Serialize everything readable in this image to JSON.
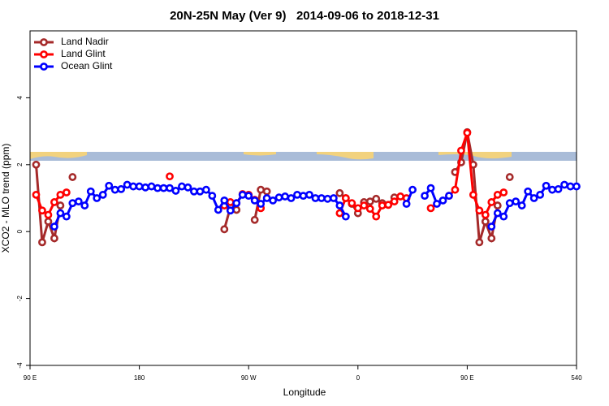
{
  "chart_data": {
    "type": "line",
    "title": "20N-25N May (Ver 9)   2014-09-06 to 2018-12-31",
    "x_label": "Longitude",
    "y_label": "XCO2 - MLO trend (ppm)",
    "xlim": [
      90,
      540
    ],
    "ylim": [
      -4,
      6
    ],
    "xticks": [
      {
        "value": 90,
        "label": "90 E"
      },
      180,
      {
        "value": 270,
        "label": "90 W"
      },
      {
        "value": 360,
        "label": "0"
      },
      {
        "value": 450,
        "label": "90 E"
      },
      540
    ],
    "yticks": [
      -4,
      -2,
      0,
      2,
      4
    ],
    "grid": false,
    "legend": "top-left",
    "x": [
      90,
      95,
      100,
      105,
      110,
      115,
      120,
      125,
      130,
      135,
      140,
      145,
      150,
      155,
      160,
      165,
      170,
      175,
      180,
      185,
      190,
      195,
      200,
      205,
      210,
      215,
      220,
      225,
      230,
      235,
      240,
      245,
      250,
      255,
      260,
      265,
      270,
      275,
      280,
      285,
      290,
      295,
      300,
      305,
      310,
      315,
      320,
      325,
      330,
      335,
      340,
      345,
      350,
      355,
      360,
      365,
      370,
      375,
      380,
      385,
      390,
      395,
      400,
      405,
      410,
      415,
      420,
      425,
      430,
      435,
      440,
      445,
      450,
      455,
      460,
      465,
      470,
      475,
      480,
      485,
      490,
      495,
      500,
      505,
      510,
      515,
      520,
      525,
      530,
      535,
      540
    ],
    "series": [
      {
        "name": "Land Nadir",
        "color": "#a52a2a",
        "values": [
          null,
          2.0,
          -0.32,
          0.3,
          -0.2,
          0.78,
          null,
          1.63,
          null,
          null,
          null,
          null,
          null,
          null,
          null,
          null,
          null,
          null,
          null,
          null,
          null,
          null,
          null,
          null,
          null,
          null,
          null,
          null,
          null,
          null,
          null,
          null,
          0.07,
          0.73,
          0.65,
          null,
          null,
          0.35,
          1.25,
          1.2,
          null,
          null,
          null,
          null,
          null,
          null,
          null,
          null,
          null,
          null,
          null,
          1.15,
          1.0,
          0.83,
          0.55,
          0.88,
          0.9,
          0.98,
          0.85,
          0.8,
          1.02,
          null,
          null,
          null,
          null,
          null,
          null,
          null,
          null,
          null,
          1.78,
          2.07,
          2.97,
          2.0,
          -0.32,
          0.3,
          -0.2,
          0.78,
          null,
          1.63,
          null,
          null,
          null,
          null,
          null,
          null,
          null,
          null,
          null,
          null,
          null
        ]
      },
      {
        "name": "Land Glint",
        "color": "#ff0000",
        "values": [
          null,
          1.1,
          0.63,
          0.5,
          0.88,
          1.1,
          1.17,
          null,
          null,
          null,
          null,
          null,
          null,
          null,
          null,
          null,
          null,
          null,
          null,
          null,
          null,
          null,
          null,
          1.65,
          null,
          null,
          null,
          null,
          null,
          null,
          null,
          null,
          0.78,
          0.88,
          0.85,
          1.12,
          1.1,
          0.95,
          0.7,
          null,
          null,
          null,
          null,
          null,
          null,
          null,
          null,
          null,
          null,
          null,
          null,
          0.55,
          1.0,
          0.85,
          0.7,
          0.78,
          0.68,
          0.45,
          0.78,
          0.8,
          0.9,
          1.05,
          1.0,
          null,
          null,
          null,
          0.7,
          null,
          null,
          1.07,
          1.25,
          2.42,
          2.95,
          1.1,
          0.63,
          0.5,
          0.88,
          1.1,
          1.17,
          null,
          null,
          null,
          null,
          null,
          null,
          null,
          null,
          null,
          null,
          null,
          null
        ]
      },
      {
        "name": "Ocean Glint",
        "color": "#0000ff",
        "values": [
          null,
          null,
          null,
          null,
          0.15,
          0.55,
          0.45,
          0.85,
          0.9,
          0.78,
          1.2,
          1.0,
          1.1,
          1.37,
          1.25,
          1.27,
          1.4,
          1.35,
          1.35,
          1.32,
          1.35,
          1.3,
          1.3,
          1.3,
          1.22,
          1.35,
          1.32,
          1.2,
          1.2,
          1.25,
          1.07,
          0.65,
          0.93,
          0.63,
          0.85,
          1.1,
          1.07,
          0.93,
          0.83,
          1.0,
          0.93,
          1.02,
          1.05,
          1.0,
          1.1,
          1.07,
          1.1,
          1.0,
          1.0,
          0.98,
          1.0,
          0.78,
          0.45,
          null,
          null,
          null,
          null,
          null,
          null,
          null,
          null,
          null,
          0.83,
          1.25,
          null,
          1.07,
          1.3,
          0.83,
          0.93,
          1.07,
          null,
          null,
          null,
          null,
          null,
          null,
          0.15,
          0.55,
          0.45,
          0.85,
          0.9,
          0.78,
          1.2,
          1.0,
          1.1,
          1.37,
          1.25,
          1.27,
          1.4,
          1.35,
          1.35
        ]
      }
    ]
  }
}
